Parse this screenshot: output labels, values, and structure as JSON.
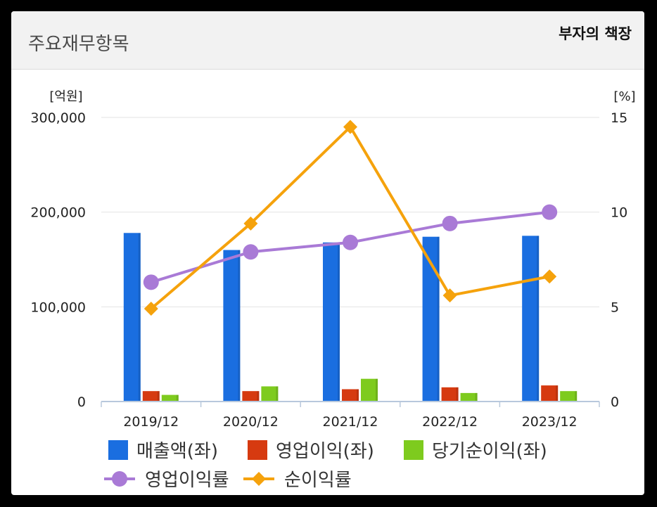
{
  "header": {
    "title": "주요재무항목",
    "badge": "부자의 책장"
  },
  "colors": {
    "revenue": "#1a6ee0",
    "operating_income": "#d63a10",
    "net_income": "#7ecb1e",
    "operating_margin": "#a97ad6",
    "net_margin": "#f5a20c"
  },
  "chart_data": {
    "type": "bar",
    "categories": [
      "2019/12",
      "2020/12",
      "2021/12",
      "2022/12",
      "2023/12"
    ],
    "y_left": {
      "unit_label": "[억원]",
      "ylim": [
        0,
        300000
      ],
      "ticks": [
        "0",
        "100,000",
        "200,000",
        "300,000"
      ]
    },
    "y_right": {
      "unit_label": "[%]",
      "ylim": [
        0,
        15
      ],
      "ticks": [
        "0",
        "5",
        "10",
        "15"
      ]
    },
    "grid": "horizontal",
    "legend_position": "bottom",
    "series": [
      {
        "name": "매출액(좌)",
        "kind": "bar",
        "axis": "left",
        "color": "#1a6ee0",
        "values": [
          178000,
          160000,
          168000,
          174000,
          175000
        ]
      },
      {
        "name": "영업이익(좌)",
        "kind": "bar",
        "axis": "left",
        "color": "#d63a10",
        "values": [
          11000,
          11000,
          13000,
          15000,
          17000
        ]
      },
      {
        "name": "당기순이익(좌)",
        "kind": "bar",
        "axis": "left",
        "color": "#7ecb1e",
        "values": [
          7000,
          16000,
          24000,
          9000,
          11000
        ]
      },
      {
        "name": "영업이익률",
        "kind": "line",
        "marker": "circle",
        "axis": "right",
        "color": "#a97ad6",
        "values": [
          6.3,
          7.9,
          8.4,
          9.4,
          10.0
        ]
      },
      {
        "name": "순이익률",
        "kind": "line",
        "marker": "diamond",
        "axis": "right",
        "color": "#f5a20c",
        "values": [
          4.9,
          9.4,
          14.5,
          5.6,
          6.6
        ]
      }
    ]
  }
}
